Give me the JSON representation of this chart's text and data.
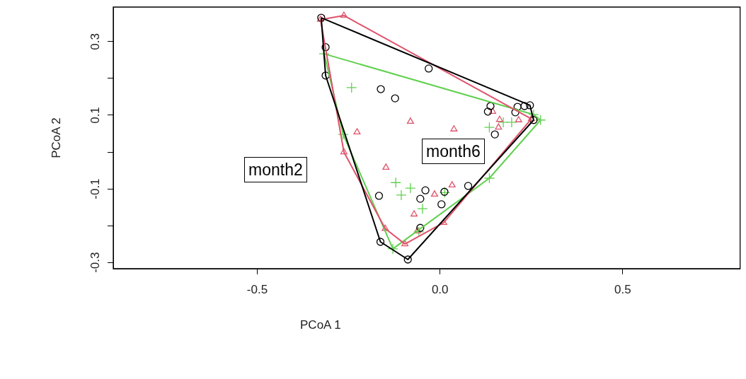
{
  "chart_data": {
    "type": "scatter",
    "xlabel": "PCoA 1",
    "ylabel": "PCoA 2",
    "xlim": [
      -0.894,
      0.821
    ],
    "ylim": [
      -0.317,
      0.394
    ],
    "xticks": [
      -0.5,
      {
        "value": 0,
        "label": "0.0"
      },
      0.5
    ],
    "yticks": [
      -0.3,
      {
        "value": -0.2,
        "label": null
      },
      -0.1,
      {
        "value": 0,
        "label": null
      },
      0.1,
      {
        "value": 0.2,
        "label": null
      },
      0.3
    ],
    "grid": false,
    "legend": false,
    "series": [
      {
        "type": "line",
        "marker": "none",
        "color": "#000000",
        "x": [
          -0.325,
          0.246,
          0.256
        ],
        "values": [
          0.365,
          0.127,
          0.087
        ]
      },
      {
        "type": "line",
        "marker": "none",
        "color": "#000000",
        "x": [
          -0.325,
          -0.313,
          -0.163,
          -0.088,
          0.256
        ],
        "values": [
          0.365,
          0.208,
          -0.244,
          -0.292,
          0.087
        ]
      },
      {
        "type": "line",
        "marker": "none",
        "color": "#df536b",
        "x": [
          -0.327,
          -0.263,
          0.25
        ],
        "values": [
          0.36,
          0.371,
          0.09
        ]
      },
      {
        "type": "line",
        "marker": "none",
        "color": "#df536b",
        "x": [
          -0.327,
          -0.263,
          -0.15,
          -0.096,
          0.01,
          0.25
        ],
        "values": [
          0.36,
          0.0,
          -0.208,
          -0.25,
          -0.192,
          0.09
        ]
      },
      {
        "type": "line",
        "marker": "none",
        "color": "#61d04f",
        "x": [
          -0.317,
          0.256,
          0.275
        ],
        "values": [
          0.267,
          0.102,
          0.087
        ]
      },
      {
        "type": "line",
        "marker": "none",
        "color": "#61d04f",
        "x": [
          -0.317,
          -0.265,
          -0.129,
          0.135,
          0.275
        ],
        "values": [
          0.267,
          0.048,
          -0.263,
          -0.071,
          0.087
        ]
      },
      {
        "marker": "circle",
        "color": "#000000",
        "x": [
          -0.325,
          -0.313,
          -0.313,
          -0.162,
          -0.123,
          -0.031,
          -0.167,
          -0.04,
          -0.054,
          0.012,
          0.004,
          0.077,
          -0.054,
          -0.163,
          -0.088,
          0.131,
          0.138,
          0.206,
          0.212,
          0.231,
          0.246,
          0.256,
          0.15
        ],
        "values": [
          0.365,
          0.285,
          0.208,
          0.171,
          0.146,
          0.227,
          -0.119,
          -0.104,
          -0.127,
          -0.108,
          -0.142,
          -0.092,
          -0.206,
          -0.244,
          -0.292,
          0.11,
          0.125,
          0.108,
          0.123,
          0.125,
          0.127,
          0.087,
          0.048
        ]
      },
      {
        "marker": "triangle",
        "color": "#df536b",
        "x": [
          -0.327,
          -0.263,
          -0.081,
          -0.227,
          0.038,
          -0.263,
          -0.148,
          -0.015,
          -0.071,
          -0.15,
          -0.062,
          -0.096,
          0.01,
          0.033,
          0.144,
          0.163,
          0.16,
          0.215,
          0.25
        ],
        "values": [
          0.36,
          0.371,
          0.083,
          0.054,
          0.062,
          0.0,
          -0.042,
          -0.115,
          -0.169,
          -0.208,
          -0.215,
          -0.25,
          -0.192,
          -0.09,
          0.11,
          0.088,
          0.067,
          0.087,
          0.09
        ]
      },
      {
        "marker": "cross",
        "color": "#61d04f",
        "x": [
          -0.317,
          -0.242,
          -0.265,
          -0.121,
          -0.081,
          -0.106,
          -0.048,
          0.013,
          -0.129,
          -0.058,
          0.135,
          0.173,
          0.196,
          0.256,
          0.275,
          0.135
        ],
        "values": [
          0.267,
          0.175,
          0.048,
          -0.083,
          -0.098,
          -0.117,
          -0.154,
          -0.11,
          -0.263,
          -0.217,
          0.067,
          0.081,
          0.081,
          0.102,
          0.087,
          -0.071
        ]
      }
    ],
    "annotations": [
      "month2",
      "month6"
    ]
  }
}
